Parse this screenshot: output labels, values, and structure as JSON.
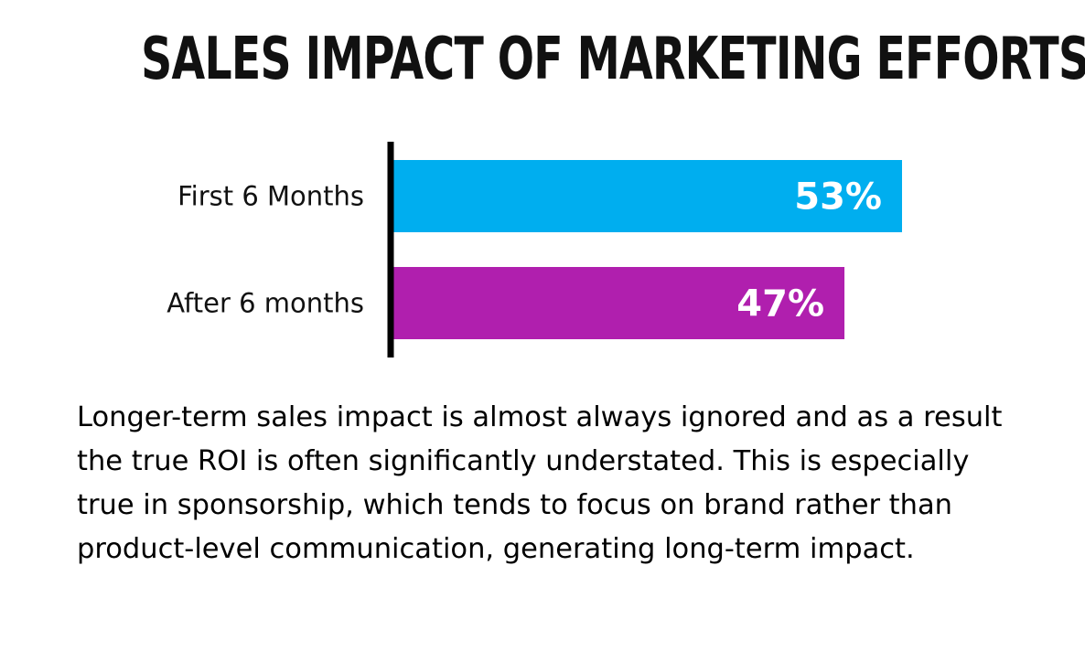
{
  "chart_data": {
    "type": "bar",
    "orientation": "horizontal",
    "title": "SALES IMPACT OF MARKETING EFFORTS",
    "categories": [
      "First 6 Months",
      "After 6 months"
    ],
    "values": [
      53,
      47
    ],
    "value_labels": [
      "53%",
      "47%"
    ],
    "colors": [
      "#00AEEF",
      "#B01FAE"
    ],
    "xlim": [
      0,
      53
    ],
    "grid": false,
    "legend": "none"
  },
  "caption": "Longer-term sales impact is almost always ignored and as a result the true ROI is often significantly understated. This is especially true in sponsorship, which tends to focus on brand rather than product-level communication, generating long-term impact."
}
